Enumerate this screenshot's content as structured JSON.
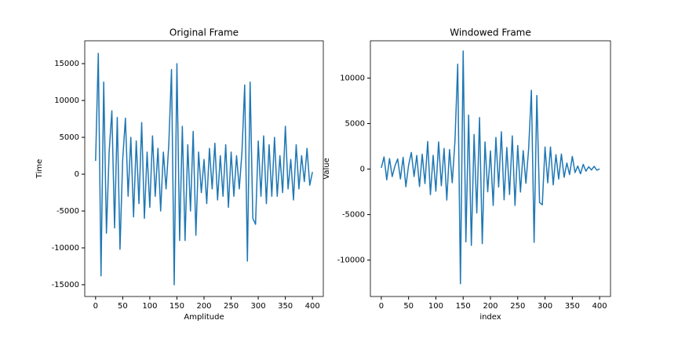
{
  "chart_data": [
    {
      "type": "line",
      "title": "Original Frame",
      "x_label": "Amplitude",
      "y_label": "Time",
      "xlim": [
        -20,
        420
      ],
      "ylim": [
        -16600,
        18100
      ],
      "xticks": [
        0,
        50,
        100,
        150,
        200,
        250,
        300,
        350,
        400
      ],
      "yticks": [
        -15000,
        -10000,
        -5000,
        0,
        5000,
        10000,
        15000
      ],
      "grid": false,
      "x": [
        0,
        5,
        10,
        15,
        20,
        25,
        30,
        35,
        40,
        45,
        50,
        55,
        60,
        65,
        70,
        75,
        80,
        85,
        90,
        95,
        100,
        105,
        110,
        115,
        120,
        125,
        130,
        135,
        140,
        145,
        150,
        155,
        160,
        165,
        170,
        175,
        180,
        185,
        190,
        195,
        200,
        205,
        210,
        215,
        220,
        225,
        230,
        235,
        240,
        245,
        250,
        255,
        260,
        265,
        270,
        275,
        280,
        285,
        290,
        295,
        300,
        305,
        310,
        315,
        320,
        325,
        330,
        335,
        340,
        345,
        350,
        355,
        360,
        365,
        370,
        375,
        380,
        385,
        390,
        395,
        400
      ],
      "series": [
        {
          "color": "#1f77b4",
          "values": [
            1800,
            16400,
            -13800,
            12500,
            -8000,
            3000,
            8600,
            -7300,
            7700,
            -10200,
            2000,
            7600,
            -3000,
            5000,
            -5800,
            4500,
            -4000,
            7000,
            -6000,
            3000,
            -4500,
            5200,
            -3000,
            3500,
            -5000,
            3000,
            -2000,
            4000,
            14200,
            -15000,
            15000,
            -9000,
            6500,
            -9000,
            4000,
            -5000,
            5800,
            -8300,
            3000,
            -2500,
            2000,
            -4000,
            3500,
            -2000,
            4200,
            -3500,
            2500,
            -3000,
            4000,
            -4500,
            3000,
            -3000,
            2500,
            -2000,
            3000,
            12100,
            -11800,
            12500,
            -6000,
            -6800,
            4500,
            -3000,
            5200,
            -4000,
            4000,
            -3000,
            5000,
            -3000,
            2500,
            -2500,
            6500,
            -2000,
            2000,
            -3500,
            4000,
            -2000,
            2500,
            -1000,
            3500,
            -1500,
            300
          ]
        }
      ]
    },
    {
      "type": "line",
      "title": "Windowed Frame",
      "x_label": "index",
      "y_label": "Value",
      "xlim": [
        -20,
        420
      ],
      "ylim": [
        -14000,
        14100
      ],
      "xticks": [
        0,
        50,
        100,
        150,
        200,
        250,
        300,
        350,
        400
      ],
      "yticks": [
        -10000,
        -5000,
        0,
        5000,
        10000
      ],
      "grid": false,
      "x": [
        0,
        5,
        10,
        15,
        20,
        25,
        30,
        35,
        40,
        45,
        50,
        55,
        60,
        65,
        70,
        75,
        80,
        85,
        90,
        95,
        100,
        105,
        110,
        115,
        120,
        125,
        130,
        135,
        140,
        145,
        150,
        155,
        160,
        165,
        170,
        175,
        180,
        185,
        190,
        195,
        200,
        205,
        210,
        215,
        220,
        225,
        230,
        235,
        240,
        245,
        250,
        255,
        260,
        265,
        270,
        275,
        280,
        285,
        290,
        295,
        300,
        305,
        310,
        315,
        320,
        325,
        330,
        335,
        340,
        345,
        350,
        355,
        360,
        365,
        370,
        375,
        380,
        385,
        390,
        395,
        400
      ],
      "series": [
        {
          "color": "#1f77b4",
          "values": [
            144,
            1335,
            -1183,
            1159,
            -820,
            345,
            1118,
            -1080,
            1294,
            -1938,
            430,
            1832,
            -810,
            1500,
            -1920,
            1638,
            -1592,
            3031,
            -2808,
            1512,
            -2430,
            2995,
            -1836,
            2265,
            -3410,
            2148,
            -1498,
            3120,
            11530,
            -12600,
            12975,
            -7992,
            5928,
            -8388,
            3800,
            -4825,
            5667,
            -8192,
            2982,
            -2496,
            2000,
            -3994,
            3479,
            -1974,
            4103,
            -3378,
            2375,
            -2796,
            3648,
            -3996,
            2595,
            -2520,
            2030,
            -1560,
            2247,
            8664,
            -8048,
            8088,
            -3672,
            -3917,
            2430,
            -1512,
            2434,
            -1732,
            1592,
            -1092,
            1655,
            -900,
            675,
            -603,
            1398,
            -380,
            336,
            -518,
            520,
            -230,
            256,
            -93,
            300,
            -122,
            24
          ]
        }
      ]
    }
  ]
}
